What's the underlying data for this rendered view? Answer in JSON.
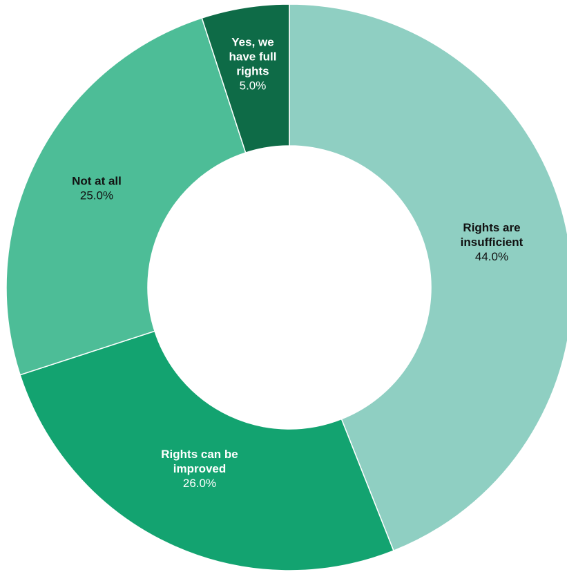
{
  "chart_data": {
    "type": "pie",
    "variant": "donut",
    "title": "",
    "categories": [
      "Rights are insufficient",
      "Rights can be improved",
      "Not at all",
      "Yes, we have full rights"
    ],
    "values": [
      44.0,
      26.0,
      25.0,
      5.0
    ],
    "value_labels": [
      "44.0%",
      "26.0%",
      "25.0%",
      "5.0%"
    ],
    "label_lines": [
      [
        "Rights are",
        "insufficient"
      ],
      [
        "Rights can be",
        "improved"
      ],
      [
        "Not at all"
      ],
      [
        "Yes, we",
        "have full",
        "rights"
      ]
    ],
    "colors": [
      "#8fcfc2",
      "#13a370",
      "#4dbd97",
      "#0e6b47"
    ],
    "label_colors": [
      "#111111",
      "#ffffff",
      "#111111",
      "#ffffff"
    ],
    "start_angle_deg": 0,
    "direction": "clockwise",
    "legend": "none"
  }
}
